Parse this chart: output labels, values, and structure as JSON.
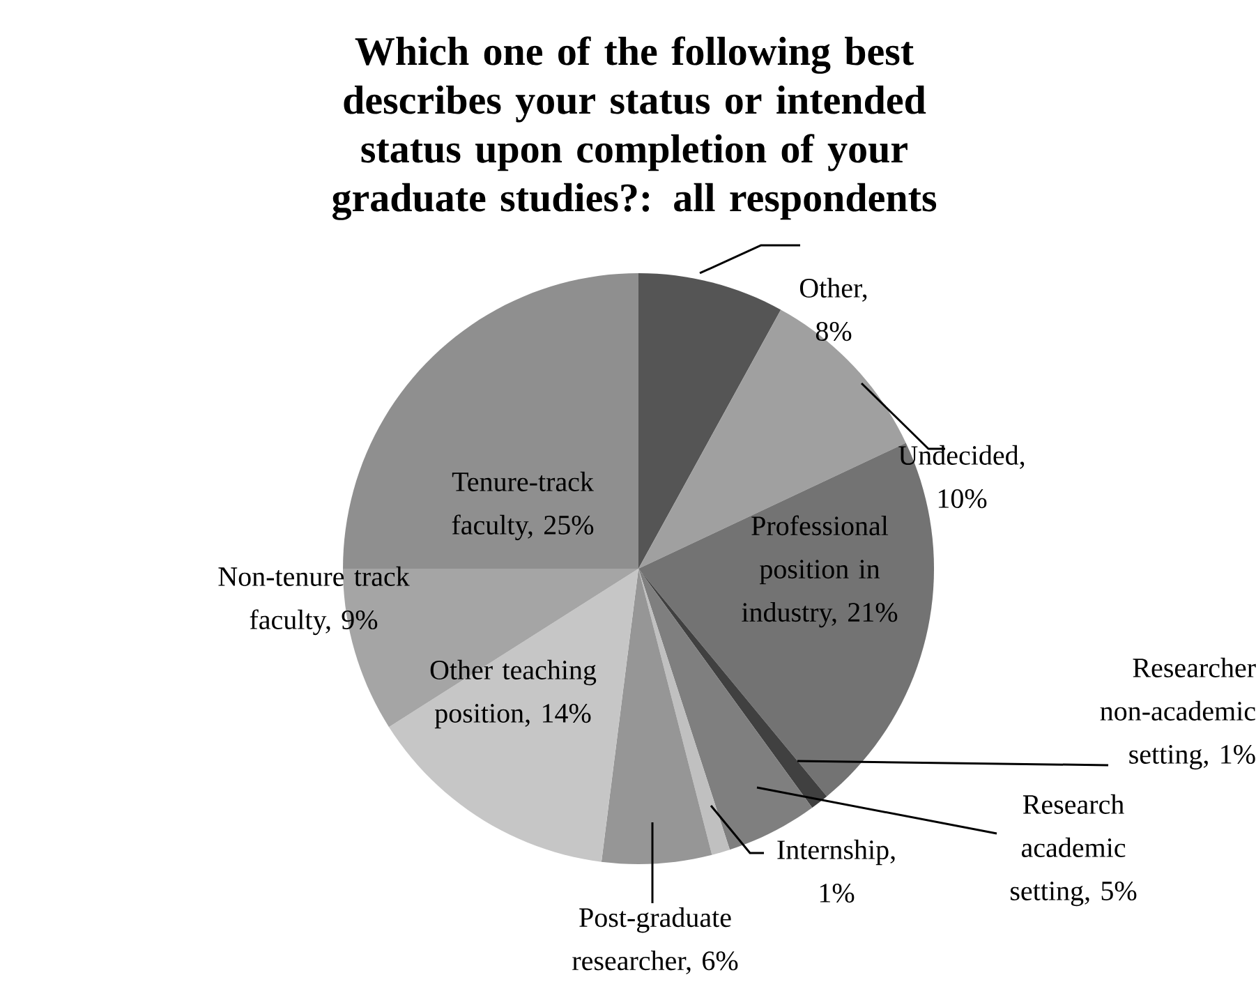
{
  "chart_data": {
    "type": "pie",
    "title": "Which one of the following best describes your status or intended status upon completion of your graduate studies?: all respondents",
    "categories": [
      "Other, 8%",
      "Undecided, 10%",
      "Professional position in industry, 21%",
      "Researcher non-academic setting, 1%",
      "Research academic setting, 5%",
      "Internship, 1%",
      "Post-graduate researcher, 6%",
      "Other teaching position, 14%",
      "Non-tenure track faculty, 9%",
      "Tenure-track faculty, 25%"
    ],
    "values": [
      8,
      10,
      21,
      1,
      5,
      1,
      6,
      14,
      9,
      25
    ],
    "colors": [
      "#555555",
      "#a0a0a0",
      "#737373",
      "#404040",
      "#7f7f7f",
      "#c0c0c0",
      "#969696",
      "#c6c6c6",
      "#a5a5a5",
      "#8f8f8f"
    ]
  }
}
